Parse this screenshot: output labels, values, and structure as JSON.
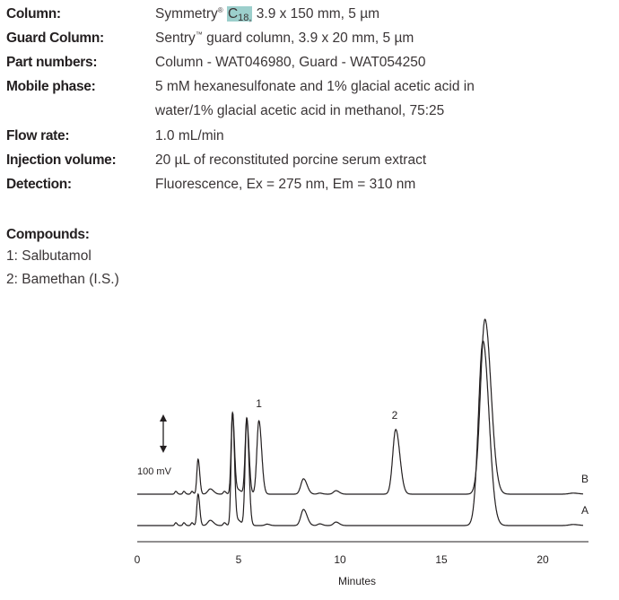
{
  "conditions": [
    {
      "label": "Column:",
      "value_pre": "Symmetry",
      "value_sup": "®",
      "value_hl": "C",
      "value_sub": "18,",
      "value_post": " 3.9 x 150 mm, 5 µm"
    },
    {
      "label": "Guard Column:",
      "value_pre": "Sentry",
      "value_sup": "™",
      "value_post": " guard column, 3.9 x 20 mm, 5 µm"
    },
    {
      "label": "Part numbers:",
      "value_pre": "Column - WAT046980, Guard - WAT054250"
    },
    {
      "label": "Mobile phase:",
      "value_pre": "5 mM hexanesulfonate and 1% glacial acetic acid in",
      "value_line2": "water/1% glacial acetic acid in methanol, 75:25"
    },
    {
      "label": "Flow rate:",
      "value_pre": "1.0 mL/min"
    },
    {
      "label": "Injection volume:",
      "value_pre": "20 µL of reconstituted porcine serum extract"
    },
    {
      "label": "Detection:",
      "value_pre": "Fluorescence, Ex = 275 nm, Em = 310 nm"
    }
  ],
  "compounds": {
    "title": "Compounds:",
    "items": [
      "1: Salbutamol",
      "2: Bamethan (I.S.)"
    ]
  },
  "highlight_color": "#9ccfcc",
  "chart_data": {
    "type": "line",
    "xlabel": "Minutes",
    "xlim": [
      0,
      22
    ],
    "xticks": [
      0,
      5,
      10,
      15,
      20
    ],
    "xtick_labels": [
      "0",
      "5",
      "10",
      "15",
      "20"
    ],
    "scale_bar": {
      "label": "100 mV",
      "value_mV": 100
    },
    "peak_labels": [
      {
        "text": "1",
        "x": 6.0
      },
      {
        "text": "2",
        "x": 12.7
      }
    ],
    "grid": false,
    "series": [
      {
        "name": "B",
        "peaks_min_mV_width": [
          [
            1.9,
            8,
            0.05
          ],
          [
            2.3,
            8,
            0.05
          ],
          [
            2.7,
            8,
            0.05
          ],
          [
            3.0,
            100,
            0.06
          ],
          [
            3.6,
            15,
            0.12
          ],
          [
            4.3,
            8,
            0.06
          ],
          [
            4.7,
            233,
            0.07
          ],
          [
            5.0,
            12,
            0.1
          ],
          [
            5.4,
            218,
            0.08
          ],
          [
            6.0,
            210,
            0.1
          ],
          [
            8.2,
            44,
            0.13
          ],
          [
            9.0,
            3,
            0.1
          ],
          [
            9.8,
            10,
            0.12
          ],
          [
            12.75,
            185,
            0.15
          ],
          [
            17.15,
            500,
            0.22
          ],
          [
            21.5,
            3,
            0.2
          ]
        ]
      },
      {
        "name": "A",
        "peaks_min_mV_width": [
          [
            1.9,
            8,
            0.05
          ],
          [
            2.3,
            8,
            0.05
          ],
          [
            2.7,
            8,
            0.05
          ],
          [
            3.0,
            90,
            0.06
          ],
          [
            3.6,
            15,
            0.12
          ],
          [
            4.3,
            8,
            0.06
          ],
          [
            4.7,
            323,
            0.07
          ],
          [
            5.0,
            14,
            0.1
          ],
          [
            5.4,
            305,
            0.08
          ],
          [
            6.4,
            4,
            0.1
          ],
          [
            8.2,
            46,
            0.13
          ],
          [
            9.0,
            5,
            0.1
          ],
          [
            9.8,
            10,
            0.12
          ],
          [
            17.05,
            528,
            0.22
          ],
          [
            21.5,
            3,
            0.2
          ]
        ]
      }
    ]
  }
}
